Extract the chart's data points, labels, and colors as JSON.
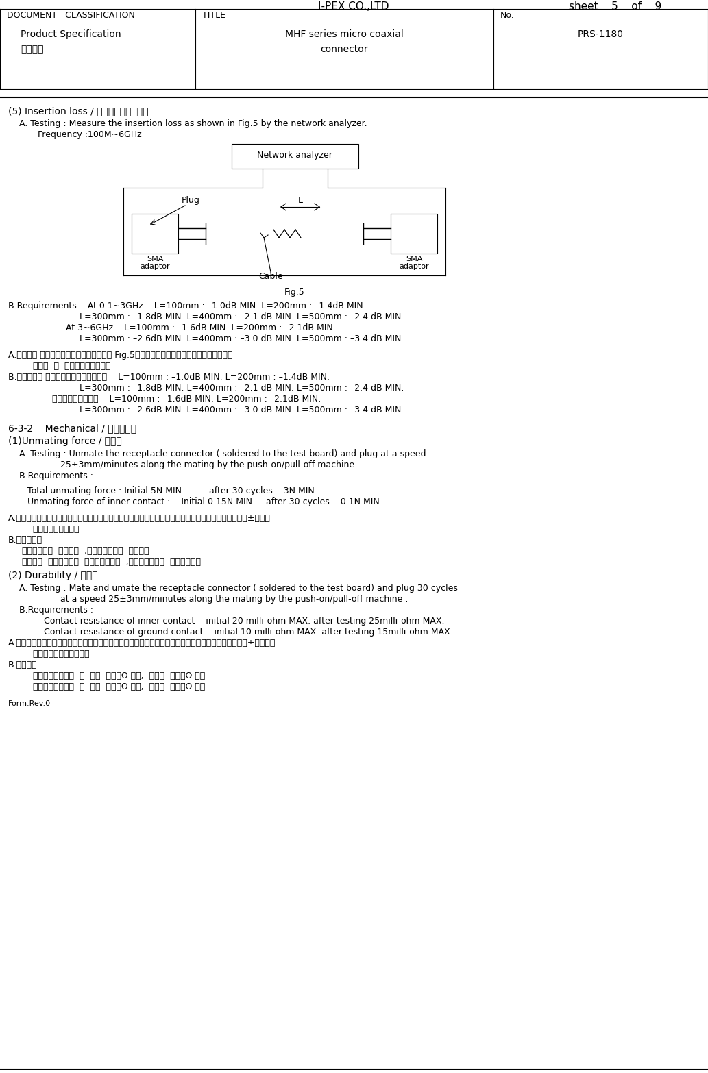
{
  "header_title": "I-PEX CO.,LTD",
  "header_sheet": "sheet    5    of    9",
  "doc_class": "DOCUMENT   CLASSIFICATION",
  "product_spec": "Product Specification",
  "seihinkikaku": "製品規格",
  "title_label": "TITLE",
  "title_content1": "MHF series micro coaxial",
  "title_content2": "connector",
  "no_label": "No.",
  "no_content": "PRS-1180",
  "bg_color": "#ffffff",
  "text_color": "#000000"
}
